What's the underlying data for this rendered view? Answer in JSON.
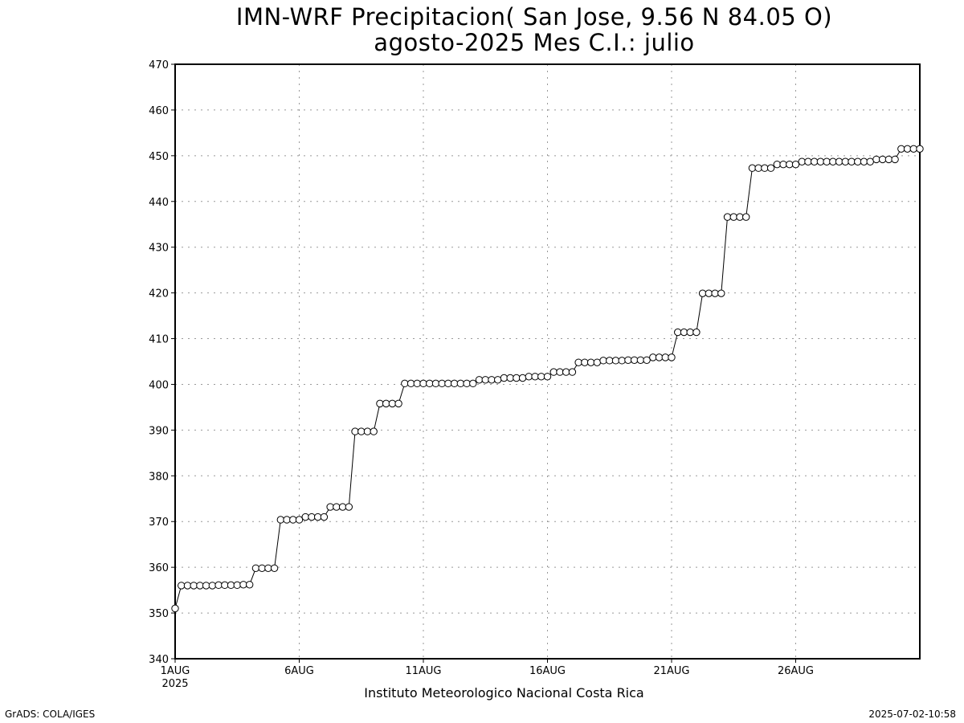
{
  "chart_data": {
    "type": "line",
    "title": "IMN-WRF  Precipitacion( San Jose, 9.56  N 84.05  O)",
    "subtitle": "agosto-2025 Mes C.I.: julio",
    "xlabel": "Instituto Meteorologico Nacional Costa Rica",
    "ylabel": "",
    "ylim": [
      340,
      470
    ],
    "yticks": [
      340,
      350,
      360,
      370,
      380,
      390,
      400,
      410,
      420,
      430,
      440,
      450,
      460,
      470
    ],
    "xlim_days": [
      0,
      30
    ],
    "xticks": [
      {
        "day": 0,
        "label": "1AUG",
        "sublabel": "2025"
      },
      {
        "day": 5,
        "label": "6AUG"
      },
      {
        "day": 10,
        "label": "11AUG"
      },
      {
        "day": 15,
        "label": "16AUG"
      },
      {
        "day": 20,
        "label": "21AUG"
      },
      {
        "day": 25,
        "label": "26AUG"
      }
    ],
    "grid": true,
    "marker": "open-circle",
    "step_hours": 6,
    "series": [
      {
        "name": "Precipitacion",
        "values": [
          351,
          356,
          356,
          356,
          356,
          356,
          356,
          356.1,
          356.1,
          356.1,
          356.1,
          356.2,
          356.2,
          359.8,
          359.8,
          359.8,
          359.8,
          370.4,
          370.4,
          370.4,
          370.4,
          371,
          371,
          371,
          371,
          373.2,
          373.2,
          373.2,
          373.2,
          389.7,
          389.7,
          389.7,
          389.7,
          395.8,
          395.8,
          395.8,
          395.8,
          400.2,
          400.2,
          400.2,
          400.2,
          400.2,
          400.2,
          400.2,
          400.2,
          400.2,
          400.2,
          400.2,
          400.2,
          401,
          401,
          401,
          401,
          401.4,
          401.4,
          401.4,
          401.4,
          401.7,
          401.7,
          401.7,
          401.7,
          402.7,
          402.7,
          402.7,
          402.7,
          404.8,
          404.8,
          404.8,
          404.8,
          405.2,
          405.2,
          405.2,
          405.2,
          405.3,
          405.3,
          405.3,
          405.3,
          405.9,
          405.9,
          405.9,
          405.9,
          411.4,
          411.4,
          411.4,
          411.4,
          419.9,
          419.9,
          419.9,
          419.9,
          436.6,
          436.6,
          436.6,
          436.6,
          447.3,
          447.3,
          447.3,
          447.3,
          448.1,
          448.1,
          448.1,
          448.1,
          448.7,
          448.7,
          448.7,
          448.7,
          448.7,
          448.7,
          448.7,
          448.7,
          448.7,
          448.7,
          448.7,
          448.7,
          449.2,
          449.2,
          449.2,
          449.2,
          451.5,
          451.5,
          451.5,
          451.5
        ]
      }
    ]
  },
  "credit": "GrADS: COLA/IGES",
  "timestamp": "2025-07-02-10:58"
}
